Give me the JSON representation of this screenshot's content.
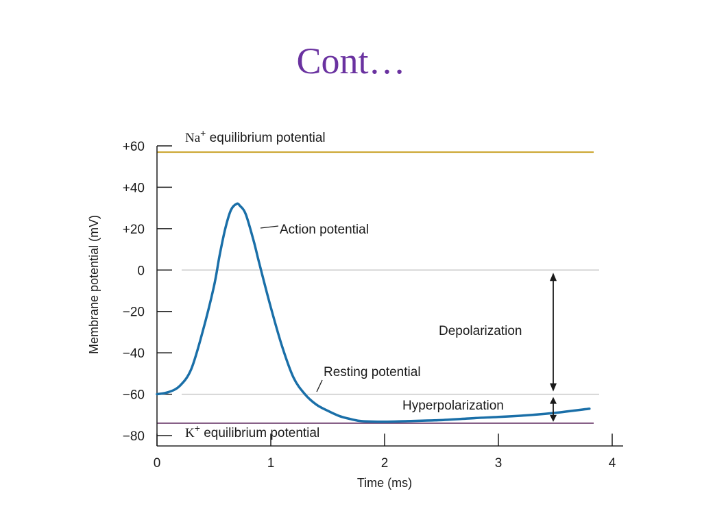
{
  "slide": {
    "title": "Cont…"
  },
  "chart_data": {
    "type": "line",
    "xlabel": "Time (ms)",
    "ylabel": "Membrane potential (mV)",
    "xlim": [
      0,
      4
    ],
    "ylim": [
      -85,
      60
    ],
    "x_ticks": [
      "0",
      "1",
      "2",
      "3",
      "4"
    ],
    "x_tick_values": [
      0,
      1,
      2,
      3,
      4
    ],
    "y_ticks": [
      "+60",
      "+40",
      "+20",
      "0",
      "−20",
      "−40",
      "−60",
      "−80"
    ],
    "y_tick_values": [
      60,
      40,
      20,
      0,
      -20,
      -40,
      -60,
      -80
    ],
    "series": [
      {
        "name": "Action potential",
        "color": "#1a6fa8",
        "x": [
          0,
          0.1,
          0.2,
          0.3,
          0.4,
          0.5,
          0.55,
          0.6,
          0.65,
          0.7,
          0.73,
          0.78,
          0.85,
          0.9,
          1.0,
          1.1,
          1.2,
          1.3,
          1.4,
          1.5,
          1.6,
          1.7,
          1.8,
          2.0,
          2.2,
          2.5,
          2.8,
          3.0,
          3.3,
          3.5,
          3.8
        ],
        "y": [
          -60,
          -59,
          -56,
          -48,
          -30,
          -8,
          7,
          20,
          29,
          32,
          31,
          27,
          14,
          3,
          -18,
          -37,
          -52,
          -60,
          -65,
          -68,
          -70.5,
          -72,
          -73,
          -73.3,
          -73,
          -72.5,
          -71.5,
          -71,
          -70,
          -69,
          -67
        ]
      }
    ],
    "reference_lines": [
      {
        "value": 57,
        "color": "#c9a227",
        "label_symbol": "Na",
        "label_sup": "+",
        "label_text": " equilibrium potential"
      },
      {
        "value": -74,
        "color": "#7a4d7a",
        "label_symbol": "K",
        "label_sup": "+",
        "label_text": " equilibrium potential"
      }
    ],
    "gridlines": [
      0,
      -60
    ],
    "annotations": {
      "action_potential": "Action potential",
      "resting_potential": "Resting potential",
      "depolarization": "Depolarization",
      "hyperpolarization": "Hyperpolarization"
    }
  }
}
